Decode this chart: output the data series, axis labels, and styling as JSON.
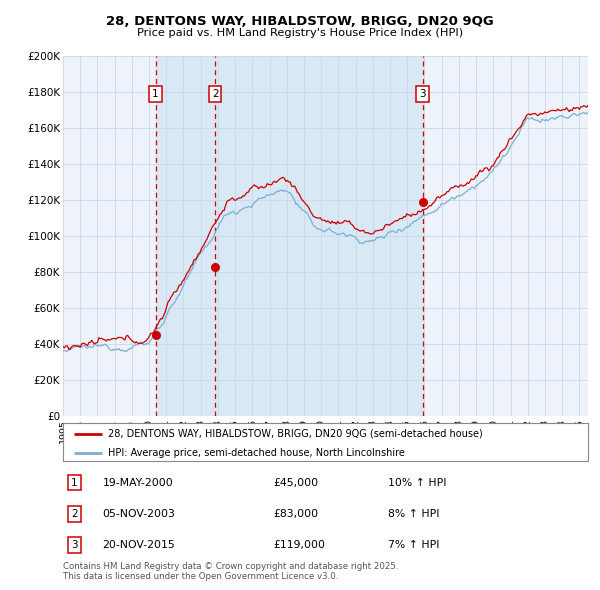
{
  "title_line1": "28, DENTONS WAY, HIBALDSTOW, BRIGG, DN20 9QG",
  "title_line2": "Price paid vs. HM Land Registry's House Price Index (HPI)",
  "ylim": [
    0,
    200000
  ],
  "xlim_start": 1995.0,
  "xlim_end": 2025.5,
  "yticks": [
    0,
    20000,
    40000,
    60000,
    80000,
    100000,
    120000,
    140000,
    160000,
    180000,
    200000
  ],
  "ytick_labels": [
    "£0",
    "£20K",
    "£40K",
    "£60K",
    "£80K",
    "£100K",
    "£120K",
    "£140K",
    "£160K",
    "£180K",
    "£200K"
  ],
  "price_paid_color": "#cc0000",
  "hpi_color": "#7ab0d4",
  "plot_bg_color": "#eef3fb",
  "grid_color": "#c8d8e8",
  "shade_color": "#d8e8f5",
  "transaction_dates": [
    2000.38,
    2003.84,
    2015.89
  ],
  "transaction_prices": [
    45000,
    83000,
    119000
  ],
  "transaction_labels": [
    "1",
    "2",
    "3"
  ],
  "transaction_date_strs": [
    "19-MAY-2000",
    "05-NOV-2003",
    "20-NOV-2015"
  ],
  "transaction_price_strs": [
    "£45,000",
    "£83,000",
    "£119,000"
  ],
  "transaction_hpi_strs": [
    "10% ↑ HPI",
    "8% ↑ HPI",
    "7% ↑ HPI"
  ],
  "legend_line1": "28, DENTONS WAY, HIBALDSTOW, BRIGG, DN20 9QG (semi-detached house)",
  "legend_line2": "HPI: Average price, semi-detached house, North Lincolnshire",
  "footnote": "Contains HM Land Registry data © Crown copyright and database right 2025.\nThis data is licensed under the Open Government Licence v3.0."
}
